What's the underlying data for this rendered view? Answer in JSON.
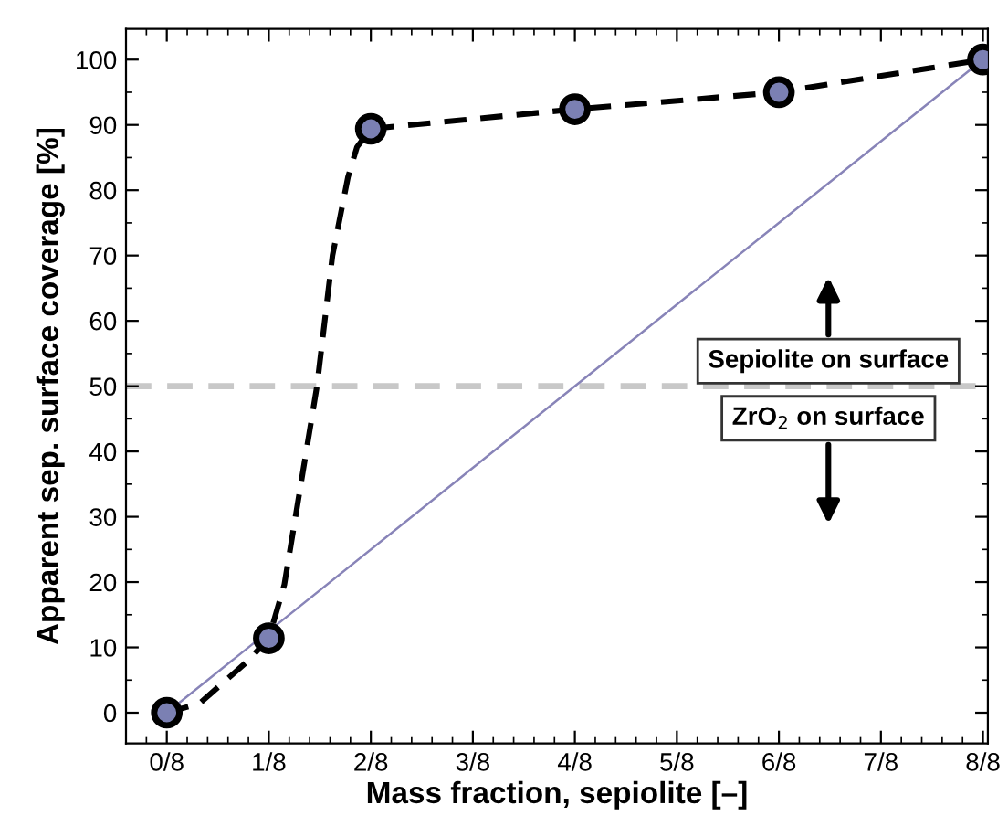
{
  "chart_data": {
    "type": "line",
    "xlabel": "Mass fraction, sepiolite [–]",
    "ylabel": "Apparent sep. surface coverage [%]",
    "x": [
      0,
      0.125,
      0.25,
      0.5,
      0.75,
      1
    ],
    "series": [
      {
        "x": [
          0,
          0.04,
          0.1,
          0.125,
          0.144,
          0.184,
          0.203,
          0.222,
          0.233,
          0.25,
          0.5,
          0.75,
          1
        ],
        "color": "#000000",
        "line_style": "dashed",
        "values": [
          0,
          1.4,
          8,
          11.4,
          19.6,
          50,
          70,
          82,
          86.6,
          89.4,
          92.4,
          95.0,
          100
        ]
      },
      {
        "type": "scatter",
        "color": "#7b80b3",
        "marker": "circle",
        "values": [
          0,
          11.4,
          89.4,
          92.4,
          95.0,
          100
        ]
      },
      {
        "x": [
          0,
          1
        ],
        "color": "#8884b8",
        "line_style": "solid",
        "values": [
          0,
          100
        ]
      }
    ],
    "xlim": [
      -0.05,
      1.006
    ],
    "ylim": [
      -4.7,
      104.7
    ],
    "xticks": [
      {
        "value": 0,
        "label": "0/8"
      },
      {
        "value": 0.125,
        "label": "1/8"
      },
      {
        "value": 0.25,
        "label": "2/8"
      },
      {
        "value": 0.375,
        "label": "3/8"
      },
      {
        "value": 0.5,
        "label": "4/8"
      },
      {
        "value": 0.625,
        "label": "5/8"
      },
      {
        "value": 0.75,
        "label": "6/8"
      },
      {
        "value": 0.875,
        "label": "7/8"
      },
      {
        "value": 1,
        "label": "8/8"
      }
    ],
    "yticks": [
      0,
      10,
      20,
      30,
      40,
      50,
      60,
      70,
      80,
      90,
      100
    ],
    "ref_lines": [
      {
        "axis": "y",
        "value": 50,
        "color": "#c8c8c8",
        "line_style": "dashed"
      }
    ],
    "annotations": [
      "Sepiolite on surface",
      "ZrO$_{2}$ on surface"
    ],
    "grid": false,
    "legend": false
  }
}
